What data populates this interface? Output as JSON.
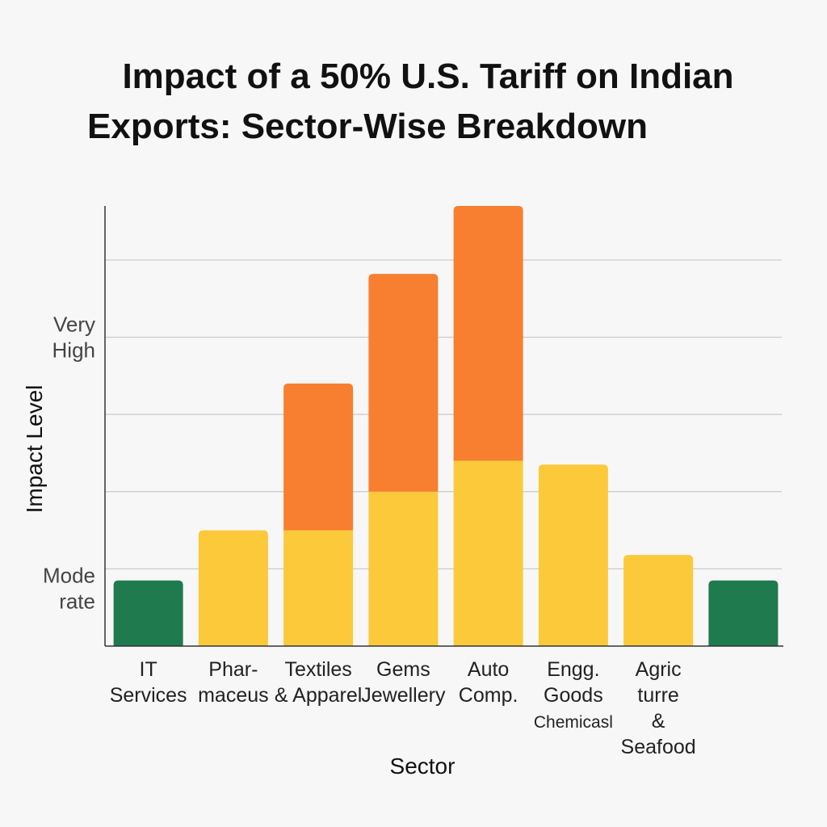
{
  "chart_data": {
    "type": "bar",
    "title_lines": [
      "Impact of a 50% U.S. Tariff on Indian",
      "Exports: Sector-Wise Breakdown"
    ],
    "xlabel": "Sector",
    "ylabel": "Impact Level",
    "ylim": [
      0,
      5.7
    ],
    "yticks": [
      {
        "lines": [
          "Mode",
          "rate"
        ],
        "value": 0.75
      },
      {
        "lines": [
          "Very",
          "High"
        ],
        "value": 4
      }
    ],
    "grid": true,
    "colors": {
      "low": "#1f7a4d",
      "moderate": "#fbc93a",
      "high": "#f77f2f"
    },
    "categories": [
      {
        "lines": [
          "IT",
          "Services"
        ]
      },
      {
        "lines": [
          "Phar-",
          "maceus"
        ]
      },
      {
        "lines": [
          "Textiles",
          "& Apparel"
        ]
      },
      {
        "lines": [
          "Gems",
          "Jewellery"
        ]
      },
      {
        "lines": [
          "Auto",
          "Comp."
        ]
      },
      {
        "lines": [
          "Engg.",
          "Goods",
          "Chemicasl"
        ]
      },
      {
        "lines": [
          "Agric",
          "turre",
          "&",
          "Seafood"
        ]
      },
      {
        "lines": []
      }
    ],
    "series": [
      {
        "color_key": "low",
        "values": [
          0.85,
          0,
          0,
          0,
          0,
          0,
          0,
          0.85
        ]
      },
      {
        "color_key": "moderate",
        "values": [
          0,
          1.5,
          1.5,
          2.0,
          2.4,
          2.35,
          1.18,
          0
        ]
      },
      {
        "color_key": "high",
        "values": [
          0,
          0,
          1.9,
          2.82,
          3.3,
          0,
          0,
          0
        ]
      }
    ]
  }
}
